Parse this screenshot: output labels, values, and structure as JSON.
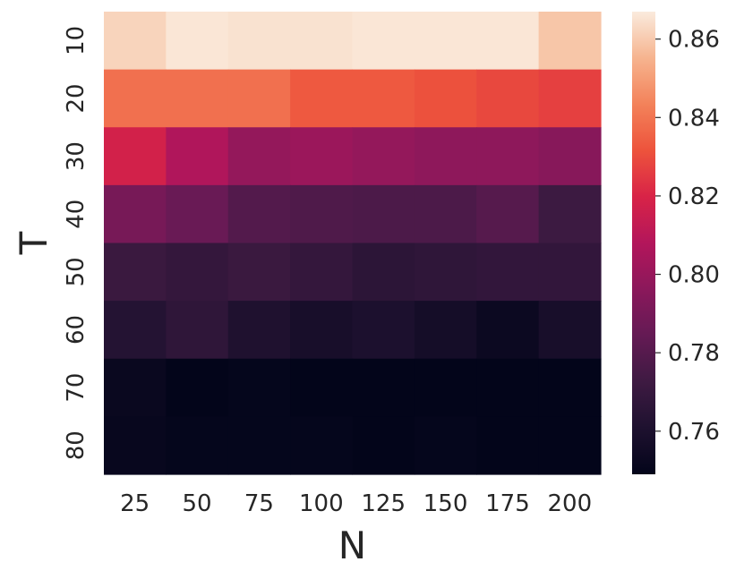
{
  "chart_data": {
    "type": "heatmap",
    "xlabel": "N",
    "ylabel": "T",
    "x_categories": [
      "25",
      "50",
      "75",
      "100",
      "125",
      "150",
      "175",
      "200"
    ],
    "y_categories": [
      "10",
      "20",
      "30",
      "40",
      "50",
      "60",
      "70",
      "80"
    ],
    "values": [
      [
        0.862,
        0.866,
        0.865,
        0.865,
        0.866,
        0.866,
        0.866,
        0.859
      ],
      [
        0.839,
        0.839,
        0.839,
        0.833,
        0.833,
        0.831,
        0.829,
        0.827
      ],
      [
        0.818,
        0.807,
        0.799,
        0.801,
        0.799,
        0.797,
        0.797,
        0.795
      ],
      [
        0.79,
        0.786,
        0.779,
        0.778,
        0.777,
        0.777,
        0.78,
        0.772
      ],
      [
        0.771,
        0.769,
        0.771,
        0.769,
        0.766,
        0.767,
        0.768,
        0.768
      ],
      [
        0.763,
        0.767,
        0.761,
        0.758,
        0.76,
        0.757,
        0.753,
        0.758
      ],
      [
        0.752,
        0.749,
        0.75,
        0.749,
        0.749,
        0.749,
        0.749,
        0.749
      ],
      [
        0.751,
        0.75,
        0.75,
        0.75,
        0.749,
        0.75,
        0.749,
        0.749
      ]
    ],
    "colorbar": {
      "range": [
        0.749,
        0.867
      ],
      "ticks": [
        "0.76",
        "0.78",
        "0.80",
        "0.82",
        "0.84",
        "0.86"
      ],
      "tick_values": [
        0.76,
        0.78,
        0.8,
        0.82,
        0.84,
        0.86
      ]
    },
    "colormap": "rocket",
    "grid": false
  }
}
